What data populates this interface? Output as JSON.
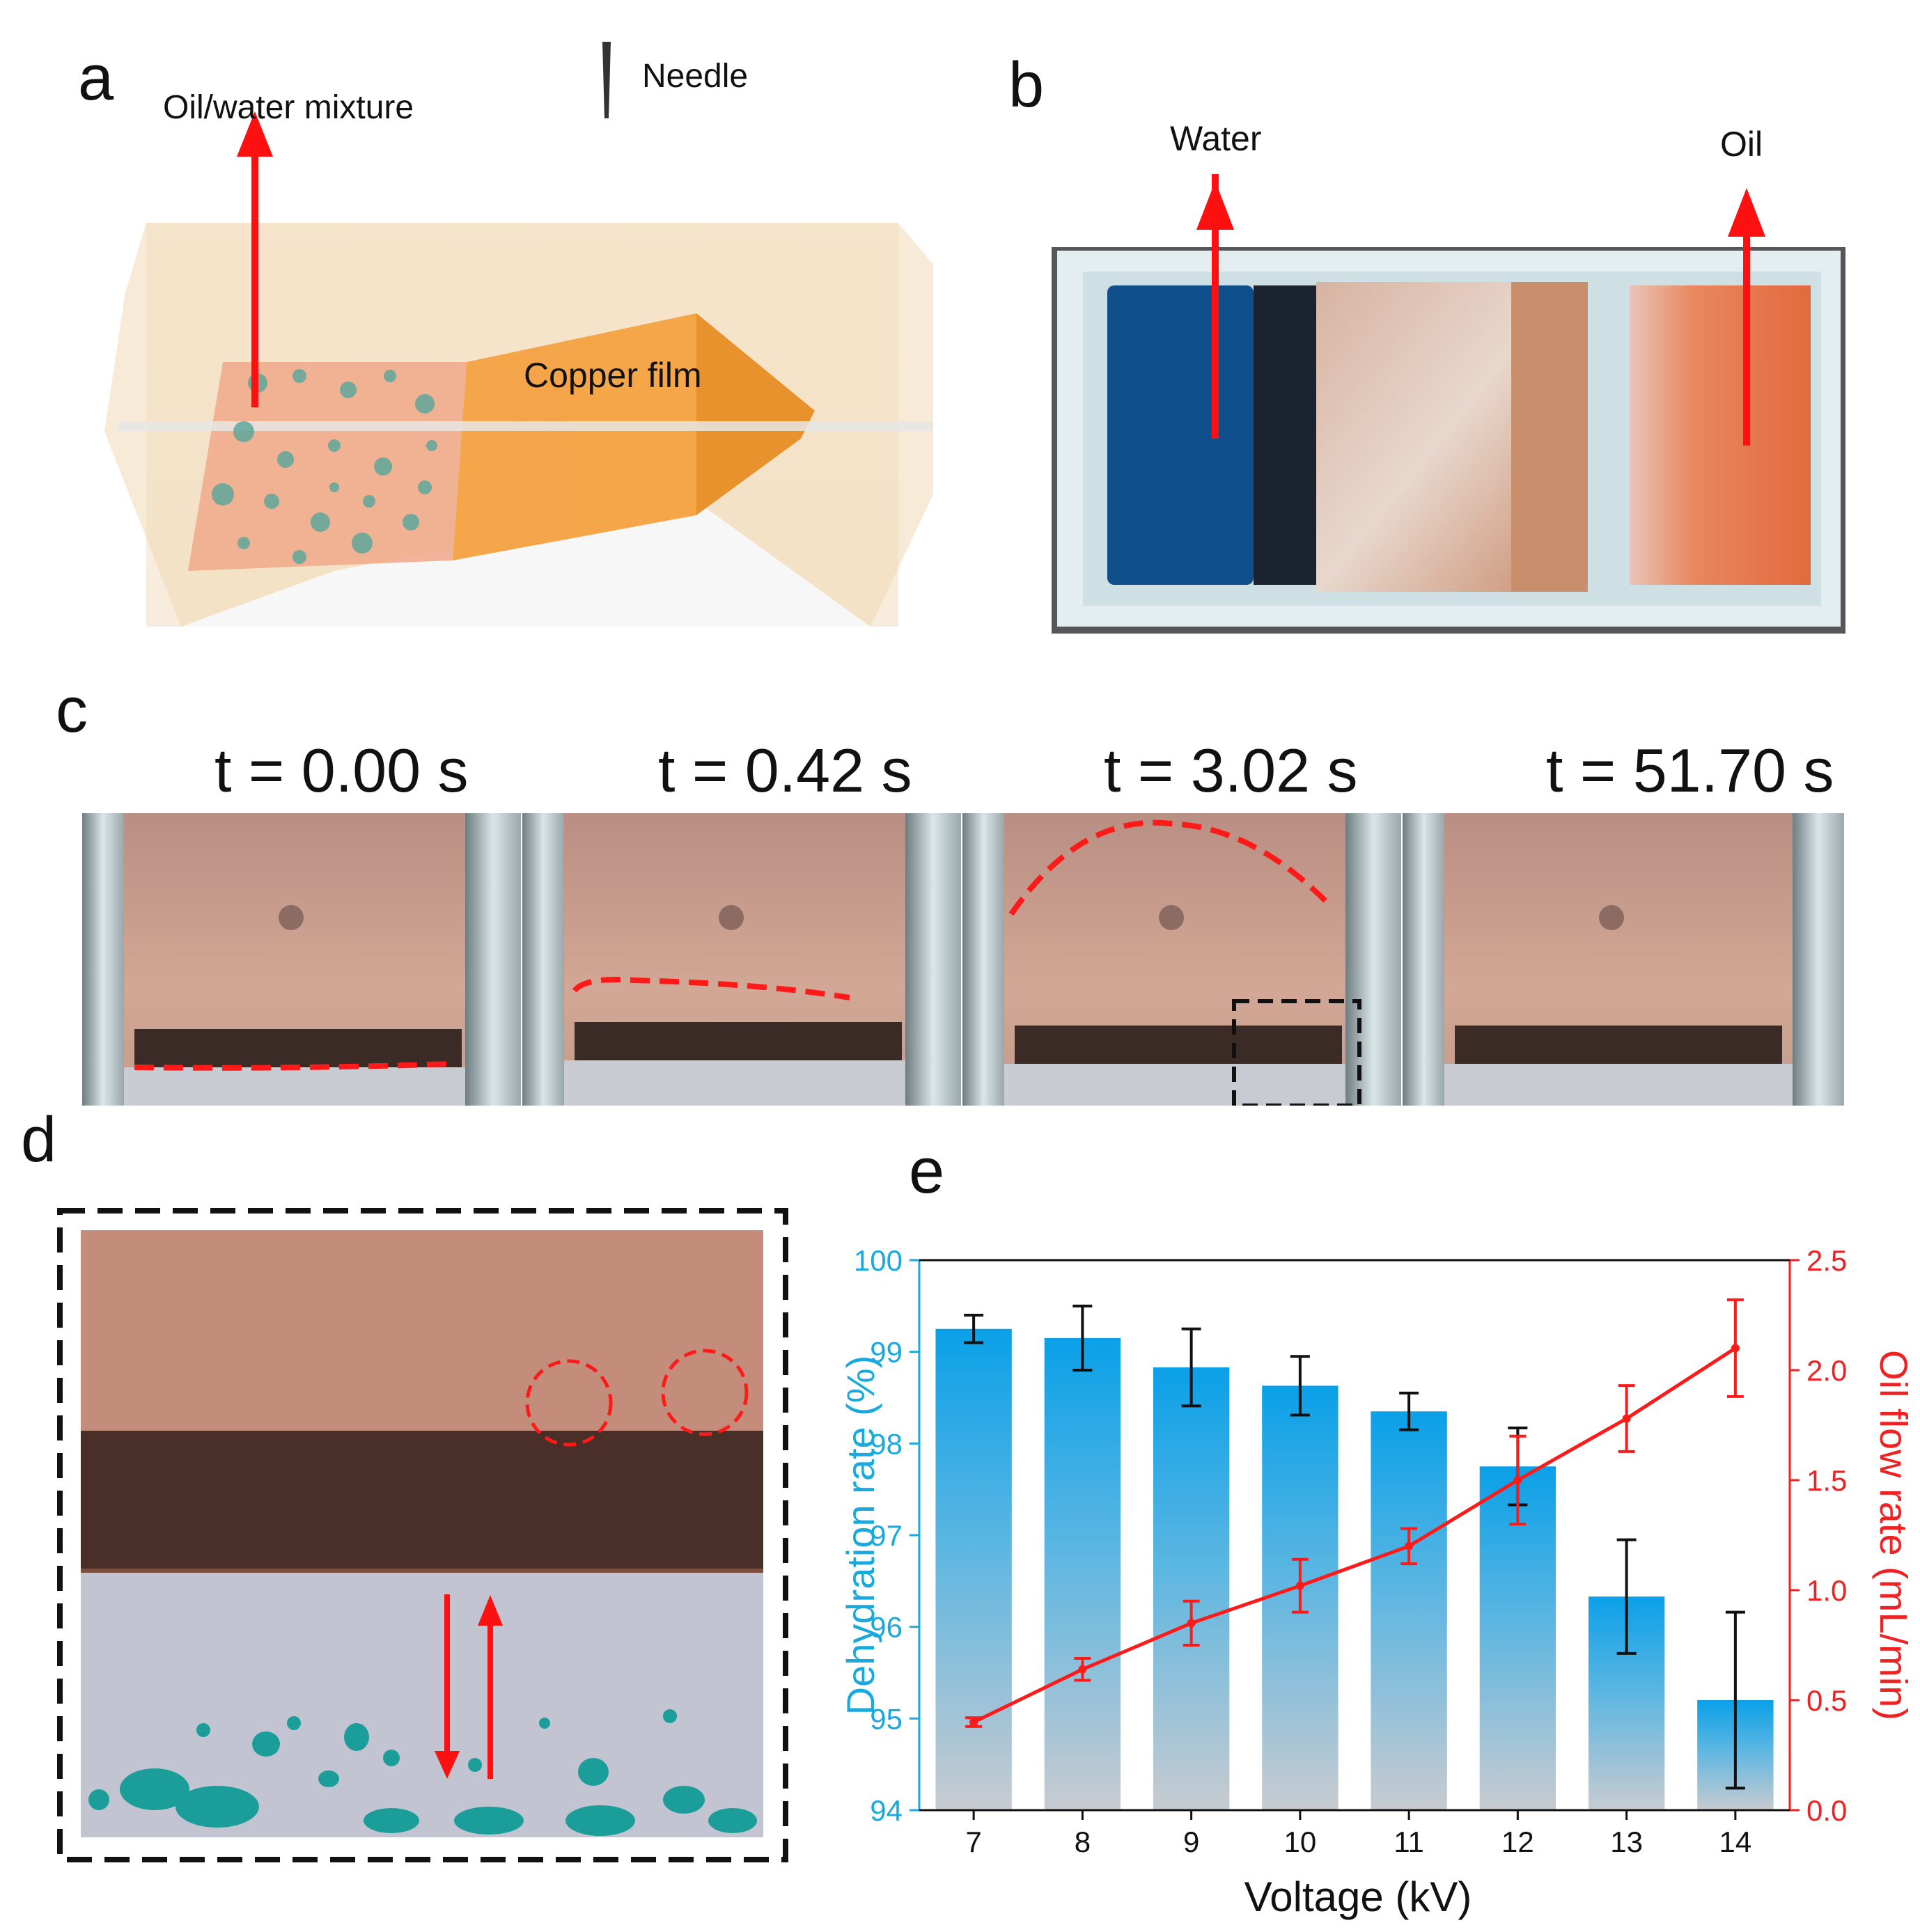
{
  "panel_a": {
    "letter": "a",
    "label_mixture": "Oil/water mixture",
    "label_needle": "Needle",
    "label_copper": "Copper film"
  },
  "panel_b": {
    "letter": "b",
    "label_water": "Water",
    "label_oil": "Oil"
  },
  "panel_c": {
    "letter": "c",
    "frames": [
      {
        "time": "t = 0.00 s"
      },
      {
        "time": "t = 0.42 s"
      },
      {
        "time": "t = 3.02 s"
      },
      {
        "time": "t = 51.70 s"
      }
    ]
  },
  "panel_d": {
    "letter": "d"
  },
  "panel_e": {
    "letter": "e"
  },
  "colors": {
    "bar_top": "#0aa0e8",
    "bar_bottom": "#c8cbd0",
    "line": "#ff1a1a",
    "left_axis": "#19a9dd",
    "right_axis": "#ee2222"
  },
  "chart_data": {
    "type": "bar",
    "title": "",
    "xlabel": "Voltage (kV)",
    "ylabel": "Dehydration rate (%)",
    "y2label": "Oil flow rate (mL/min)",
    "categories": [
      "7",
      "8",
      "9",
      "10",
      "11",
      "12",
      "13",
      "14"
    ],
    "ylim": [
      94,
      100
    ],
    "y2lim": [
      0.0,
      2.5
    ],
    "yticks": [
      "94",
      "95",
      "96",
      "97",
      "98",
      "99",
      "100"
    ],
    "y2ticks": [
      "0.0",
      "0.5",
      "1.0",
      "1.5",
      "2.0",
      "2.5"
    ],
    "series": [
      {
        "name": "Dehydration rate",
        "axis": "left",
        "type": "bar",
        "values": [
          99.25,
          99.15,
          98.83,
          98.63,
          98.35,
          97.75,
          96.33,
          95.2
        ],
        "errors": [
          0.15,
          0.35,
          0.42,
          0.32,
          0.2,
          0.42,
          0.62,
          0.96
        ]
      },
      {
        "name": "Oil flow rate",
        "axis": "right",
        "type": "line",
        "values": [
          0.4,
          0.64,
          0.85,
          1.02,
          1.2,
          1.5,
          1.78,
          2.1
        ],
        "errors": [
          0.02,
          0.05,
          0.1,
          0.12,
          0.08,
          0.2,
          0.15,
          0.22
        ]
      }
    ]
  }
}
